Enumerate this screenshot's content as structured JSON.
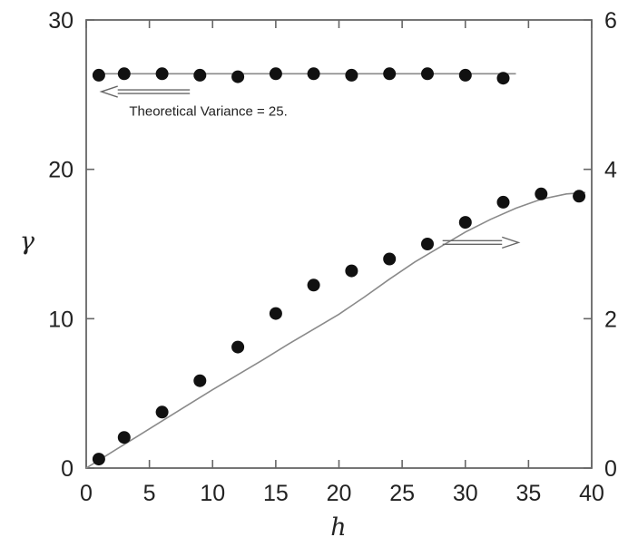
{
  "chart_data": {
    "type": "scatter",
    "xlabel": "h",
    "ylabel_left": "γ",
    "ylabel_right": "",
    "xlim": [
      0,
      40
    ],
    "ylim_left": [
      0,
      30
    ],
    "ylim_right": [
      0,
      6
    ],
    "x_ticks": [
      "0",
      "5",
      "10",
      "15",
      "20",
      "25",
      "30",
      "35",
      "40"
    ],
    "y_ticks_left": [
      "0",
      "10",
      "20",
      "30"
    ],
    "y_ticks_right": [
      "0",
      "2",
      "4",
      "6"
    ],
    "grid": false,
    "series": [
      {
        "axis": "left",
        "marker": "dot",
        "x": [
          1,
          3,
          6,
          9,
          12,
          15,
          18,
          21,
          24,
          27,
          30,
          33
        ],
        "y": [
          26.3,
          26.4,
          26.4,
          26.3,
          26.2,
          26.4,
          26.4,
          26.3,
          26.4,
          26.4,
          26.3,
          26.1
        ]
      },
      {
        "axis": "right",
        "marker": "dot",
        "x": [
          1,
          3,
          6,
          9,
          12,
          15,
          18,
          21,
          24,
          27,
          30,
          33,
          36,
          39
        ],
        "y": [
          0.12,
          0.41,
          0.75,
          1.17,
          1.62,
          2.07,
          2.45,
          2.64,
          2.8,
          3.0,
          3.29,
          3.56,
          3.67,
          3.64
        ]
      },
      {
        "axis": "left",
        "marker": "line",
        "x": [
          1,
          34
        ],
        "y": [
          26.4,
          26.4
        ]
      },
      {
        "axis": "right",
        "marker": "line",
        "x": [
          0,
          2,
          4,
          6,
          8,
          10,
          12,
          14,
          16,
          18,
          20,
          22,
          24,
          26,
          28,
          30,
          32,
          34,
          36,
          38,
          39.5
        ],
        "y": [
          0,
          0.21,
          0.42,
          0.63,
          0.84,
          1.05,
          1.25,
          1.45,
          1.66,
          1.86,
          2.06,
          2.29,
          2.53,
          2.76,
          2.96,
          3.16,
          3.33,
          3.48,
          3.6,
          3.67,
          3.69
        ]
      }
    ],
    "annotations": [
      {
        "text": "Theoretical Variance = 25.",
        "arrow": "left",
        "axis": "left",
        "text_anchor": [
          3.4,
          23.6
        ],
        "arrow_from": [
          8.2,
          25.2
        ],
        "arrow_to": [
          1.2,
          25.2
        ]
      },
      {
        "text": "",
        "arrow": "right",
        "axis": "left",
        "arrow_from": [
          28.2,
          15.1
        ],
        "arrow_to": [
          34.2,
          15.1
        ]
      }
    ]
  }
}
